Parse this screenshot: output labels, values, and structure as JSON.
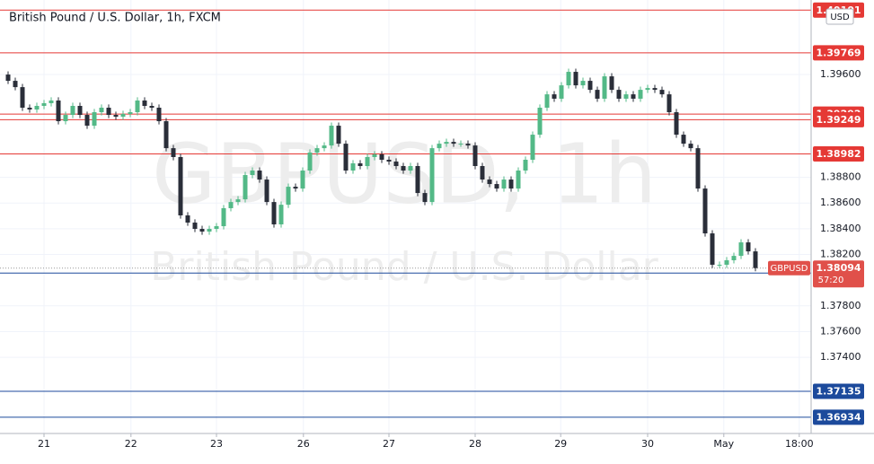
{
  "chart_data": {
    "type": "candlestick",
    "title": "British Pound / U.S. Dollar, 1h, FXCM",
    "watermark": "GBPUSD, 1h",
    "watermark_subtitle": "British Pound / U.S. Dollar",
    "currency": "USD",
    "symbol": "GBPUSD",
    "countdown": "57:20",
    "up_color": "#53b987",
    "down_color": "#2a2e39",
    "grid": true,
    "xlim": [
      0,
      112.25
    ],
    "xticks": [
      {
        "value": 5.5,
        "label": "21"
      },
      {
        "value": 17.6,
        "label": "22"
      },
      {
        "value": 29.5,
        "label": "23"
      },
      {
        "value": 41.6,
        "label": "26"
      },
      {
        "value": 53.5,
        "label": "27"
      },
      {
        "value": 65.5,
        "label": "28"
      },
      {
        "value": 77.4,
        "label": "29"
      },
      {
        "value": 89.5,
        "label": "30"
      },
      {
        "value": 100.1,
        "label": "May"
      },
      {
        "value": 110.6,
        "label": "18:00"
      }
    ],
    "ylim": [
      1.36807,
      1.4018
    ],
    "yticks": [
      {
        "value": 1.396,
        "label": "1.39600"
      },
      {
        "value": 1.388,
        "label": "1.38800"
      },
      {
        "value": 1.386,
        "label": "1.38600"
      },
      {
        "value": 1.384,
        "label": "1.38400"
      },
      {
        "value": 1.382,
        "label": "1.38200"
      },
      {
        "value": 1.378,
        "label": "1.37800"
      },
      {
        "value": 1.376,
        "label": "1.37600"
      },
      {
        "value": 1.374,
        "label": "1.37400"
      }
    ],
    "levels": [
      {
        "value": 1.40101,
        "color": "#e53935"
      },
      {
        "value": 1.39769,
        "color": "#e53935"
      },
      {
        "value": 1.39292,
        "color": "#e53935"
      },
      {
        "value": 1.39249,
        "color": "#e53935"
      },
      {
        "value": 1.38982,
        "color": "#e53935"
      },
      {
        "value": 1.38055,
        "color": "#1c4a9c"
      },
      {
        "value": 1.37135,
        "color": "#1c4a9c"
      },
      {
        "value": 1.36934,
        "color": "#1c4a9c"
      }
    ],
    "open": [
      1.396,
      1.39551,
      1.39502,
      1.39342,
      1.39328,
      1.39356,
      1.39377,
      1.39398,
      1.39237,
      1.39286,
      1.39356,
      1.39286,
      1.39202,
      1.39307,
      1.39342,
      1.39286,
      1.39272,
      1.39293,
      1.39307,
      1.39398,
      1.39356,
      1.39342,
      1.39237,
      1.39027,
      1.38958,
      1.38504,
      1.38448,
      1.38399,
      1.38378,
      1.38399,
      1.3842,
      1.3856,
      1.38608,
      1.38629,
      1.38818,
      1.38853,
      1.38783,
      1.38608,
      1.38434,
      1.38587,
      1.38727,
      1.38713,
      1.38853,
      1.38993,
      1.39027,
      1.39048,
      1.39202,
      1.39062,
      1.38853,
      1.38909,
      1.38888,
      1.38958,
      1.38979,
      1.38937,
      1.38923,
      1.38888,
      1.38853,
      1.38888,
      1.38678,
      1.38608,
      1.39027,
      1.39062,
      1.39076,
      1.39062,
      1.39062,
      1.39048,
      1.38888,
      1.38783,
      1.38748,
      1.38713,
      1.38783,
      1.38713,
      1.38853,
      1.38937,
      1.39132,
      1.39342,
      1.39446,
      1.39412,
      1.39516,
      1.39621,
      1.39516,
      1.39551,
      1.39481,
      1.39412,
      1.39586,
      1.39481,
      1.39412,
      1.39446,
      1.39412,
      1.39481,
      1.39495,
      1.39481,
      1.39446,
      1.39307,
      1.39132,
      1.39062,
      1.39027,
      1.38713,
      1.38364,
      1.3812,
      1.3812,
      1.38155,
      1.38189,
      1.38294,
      1.38224
    ],
    "high": [
      1.39625,
      1.39576,
      1.39527,
      1.39367,
      1.39381,
      1.39402,
      1.39423,
      1.39423,
      1.39311,
      1.39381,
      1.39381,
      1.39311,
      1.39332,
      1.39367,
      1.39367,
      1.39311,
      1.39318,
      1.39332,
      1.39423,
      1.39423,
      1.39381,
      1.39367,
      1.39262,
      1.39052,
      1.38983,
      1.38529,
      1.38473,
      1.38424,
      1.38424,
      1.38445,
      1.38585,
      1.38633,
      1.38654,
      1.38843,
      1.38878,
      1.38878,
      1.38808,
      1.38633,
      1.38612,
      1.38752,
      1.38752,
      1.38878,
      1.39018,
      1.39052,
      1.39073,
      1.39227,
      1.39227,
      1.39087,
      1.38934,
      1.38934,
      1.38983,
      1.39004,
      1.39004,
      1.38962,
      1.38948,
      1.38913,
      1.38913,
      1.38913,
      1.38703,
      1.39052,
      1.39087,
      1.39101,
      1.39101,
      1.39087,
      1.39087,
      1.39073,
      1.38913,
      1.38808,
      1.38773,
      1.38808,
      1.38808,
      1.38878,
      1.38962,
      1.39157,
      1.39367,
      1.39471,
      1.39471,
      1.39541,
      1.39646,
      1.39646,
      1.39576,
      1.39576,
      1.39506,
      1.39611,
      1.39611,
      1.39506,
      1.39471,
      1.39471,
      1.39506,
      1.3952,
      1.3952,
      1.39506,
      1.39471,
      1.39332,
      1.39157,
      1.39087,
      1.39052,
      1.38738,
      1.38389,
      1.38145,
      1.3818,
      1.38214,
      1.38319,
      1.38319,
      1.38249
    ],
    "low": [
      1.39526,
      1.39477,
      1.39317,
      1.39303,
      1.39303,
      1.39331,
      1.39352,
      1.39212,
      1.39212,
      1.39261,
      1.39261,
      1.39177,
      1.39177,
      1.39282,
      1.39261,
      1.39247,
      1.39247,
      1.39268,
      1.39282,
      1.39331,
      1.39317,
      1.39212,
      1.39002,
      1.38933,
      1.38479,
      1.38423,
      1.38374,
      1.38353,
      1.38353,
      1.38374,
      1.38395,
      1.38535,
      1.38583,
      1.38604,
      1.38793,
      1.38758,
      1.38583,
      1.38409,
      1.38409,
      1.38562,
      1.38688,
      1.38688,
      1.38828,
      1.38968,
      1.39002,
      1.39023,
      1.39037,
      1.38828,
      1.38828,
      1.38863,
      1.38863,
      1.38933,
      1.38912,
      1.38898,
      1.38863,
      1.38828,
      1.38828,
      1.38653,
      1.38583,
      1.38583,
      1.39002,
      1.39037,
      1.39037,
      1.39037,
      1.39023,
      1.38863,
      1.38758,
      1.38723,
      1.38688,
      1.38688,
      1.38688,
      1.38688,
      1.38828,
      1.38912,
      1.39107,
      1.39317,
      1.39387,
      1.39387,
      1.39491,
      1.39491,
      1.39491,
      1.39456,
      1.39387,
      1.39387,
      1.39456,
      1.39387,
      1.39387,
      1.39387,
      1.39387,
      1.39456,
      1.39456,
      1.39421,
      1.39282,
      1.39107,
      1.39037,
      1.39002,
      1.38688,
      1.38339,
      1.38095,
      1.38095,
      1.38095,
      1.3813,
      1.38164,
      1.38199,
      1.38069
    ],
    "close": [
      1.39551,
      1.39502,
      1.39342,
      1.39328,
      1.39356,
      1.39377,
      1.39398,
      1.39237,
      1.39286,
      1.39356,
      1.39286,
      1.39202,
      1.39307,
      1.39342,
      1.39286,
      1.39272,
      1.39293,
      1.39307,
      1.39398,
      1.39356,
      1.39342,
      1.39237,
      1.39027,
      1.38958,
      1.38504,
      1.38448,
      1.38399,
      1.38378,
      1.38399,
      1.3842,
      1.3856,
      1.38608,
      1.38629,
      1.38818,
      1.38853,
      1.38783,
      1.38608,
      1.38434,
      1.38587,
      1.38727,
      1.38713,
      1.38853,
      1.38993,
      1.39027,
      1.39048,
      1.39202,
      1.39062,
      1.38853,
      1.38909,
      1.38888,
      1.38958,
      1.38979,
      1.38937,
      1.38923,
      1.38888,
      1.38853,
      1.38888,
      1.38678,
      1.38608,
      1.39027,
      1.39062,
      1.39076,
      1.39062,
      1.39062,
      1.39048,
      1.38888,
      1.38783,
      1.38748,
      1.38713,
      1.38783,
      1.38713,
      1.38853,
      1.38937,
      1.39132,
      1.39342,
      1.39446,
      1.39412,
      1.39516,
      1.39621,
      1.39516,
      1.39551,
      1.39481,
      1.39412,
      1.39586,
      1.39481,
      1.39412,
      1.39446,
      1.39412,
      1.39481,
      1.39495,
      1.39481,
      1.39446,
      1.39307,
      1.39132,
      1.39062,
      1.39027,
      1.38713,
      1.38364,
      1.3812,
      1.3812,
      1.38155,
      1.38189,
      1.38294,
      1.38224,
      1.38094
    ]
  }
}
